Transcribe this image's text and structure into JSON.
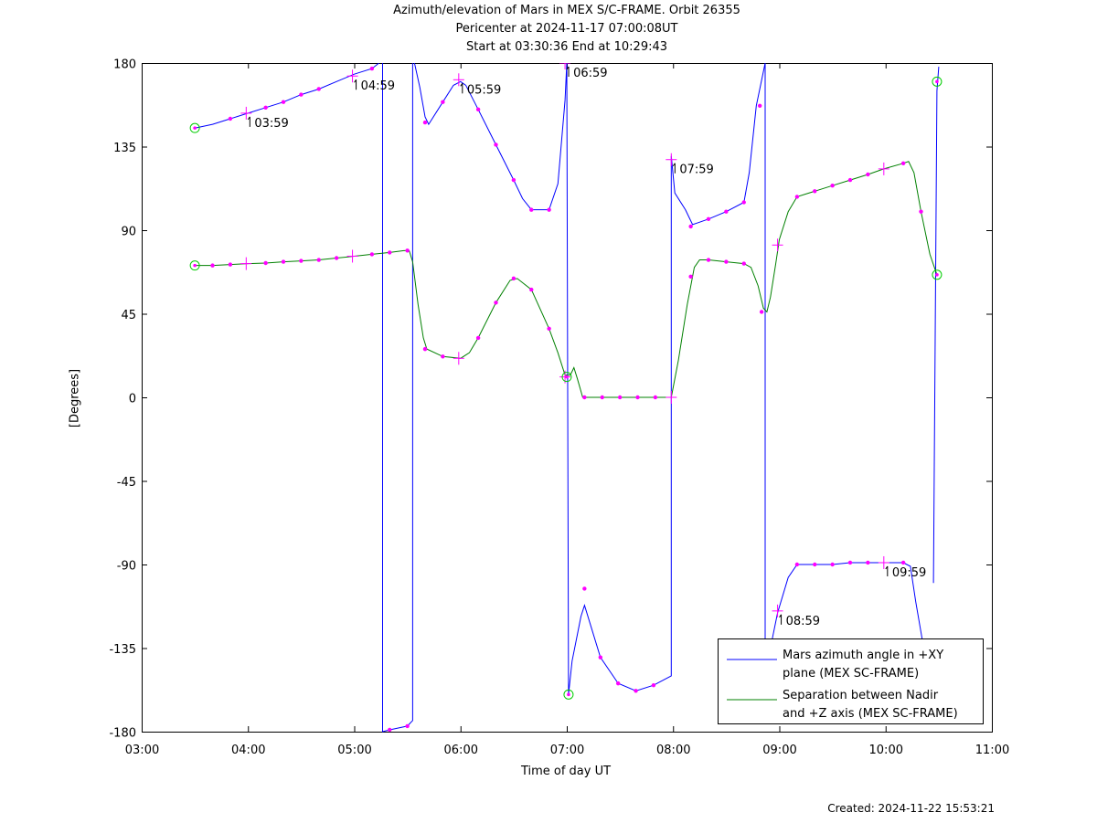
{
  "header": {
    "title": "Azimuth/elevation of Mars in MEX S/C-FRAME.  Orbit 26355",
    "pericenter": "Pericenter at 2024-11-17 07:00:08UT",
    "start_end": "Start at 03:30:36 End at 10:29:43"
  },
  "footer": {
    "created": "Created: 2024-11-22 15:53:21"
  },
  "colors": {
    "azimuth": "#0000ff",
    "separation": "#008000",
    "marker": "#ff00ff",
    "endpoint": "#00cc00"
  },
  "chart_data": {
    "type": "line",
    "xlabel": "Time of day UT",
    "ylabel": "[Degrees]",
    "xlim": [
      "03:00",
      "11:00"
    ],
    "ylim": [
      -180,
      180
    ],
    "xticks": [
      "03:00",
      "04:00",
      "05:00",
      "06:00",
      "07:00",
      "08:00",
      "09:00",
      "10:00",
      "11:00"
    ],
    "yticks": [
      "180",
      "135",
      "90",
      "45",
      "0",
      "-45",
      "-90",
      "-135",
      "-180"
    ],
    "grid": false,
    "legend_position": "bottom-right",
    "series": [
      {
        "name": "Mars azimuth angle in +XY plane (MEX SC-FRAME)",
        "legend_lines": [
          "Mars azimuth angle in +XY",
          "plane (MEX SC-FRAME)"
        ],
        "points": [
          [
            "03:30",
            145
          ],
          [
            "03:40",
            147
          ],
          [
            "03:50",
            150
          ],
          [
            "04:00",
            153
          ],
          [
            "04:10",
            156
          ],
          [
            "04:20",
            159
          ],
          [
            "04:30",
            163
          ],
          [
            "04:40",
            166
          ],
          [
            "04:50",
            170
          ],
          [
            "05:00",
            174
          ],
          [
            "05:10",
            177
          ],
          [
            "05:14",
            180
          ],
          null,
          [
            "05:16",
            180
          ],
          [
            "05:16",
            -180
          ],
          [
            "05:20",
            -179
          ],
          [
            "05:30",
            -177
          ],
          [
            "05:33",
            -174
          ],
          [
            "05:33",
            180
          ],
          null,
          [
            "05:34",
            180
          ],
          [
            "05:37",
            167
          ],
          [
            "05:40",
            151
          ],
          [
            "05:42",
            147
          ],
          [
            "05:50",
            159
          ],
          [
            "05:56",
            168
          ],
          [
            "06:00",
            170
          ],
          [
            "06:03",
            168
          ],
          [
            "06:10",
            155
          ],
          [
            "06:20",
            136
          ],
          [
            "06:30",
            117
          ],
          [
            "06:35",
            107
          ],
          [
            "06:40",
            101
          ],
          [
            "06:50",
            101
          ],
          [
            "06:55",
            115
          ],
          [
            "06:59",
            160
          ],
          [
            "07:00",
            180
          ],
          null,
          [
            "07:00",
            180
          ],
          [
            "07:01",
            -160
          ],
          [
            "07:03",
            -142
          ],
          [
            "07:08",
            -118
          ],
          [
            "07:10",
            -112
          ],
          [
            "07:19",
            -140
          ],
          [
            "07:29",
            -154
          ],
          [
            "07:39",
            -158
          ],
          [
            "07:49",
            -155
          ],
          [
            "07:59",
            -150
          ],
          [
            "07:59",
            130
          ],
          [
            "08:01",
            110
          ],
          [
            "08:07",
            101
          ],
          [
            "08:11",
            93
          ],
          [
            "08:20",
            96
          ],
          [
            "08:30",
            100
          ],
          [
            "08:40",
            105
          ],
          [
            "08:43",
            121
          ],
          [
            "08:47",
            157
          ],
          [
            "08:52",
            180
          ],
          null,
          [
            "08:52",
            180
          ],
          [
            "08:52",
            -150
          ],
          null,
          [
            "08:56",
            -130
          ],
          [
            "08:59",
            -116
          ],
          [
            "09:05",
            -97
          ],
          [
            "09:10",
            -90
          ],
          [
            "09:20",
            -90
          ],
          [
            "09:30",
            -90
          ],
          [
            "09:40",
            -89
          ],
          [
            "09:50",
            -89
          ],
          [
            "09:59",
            -89
          ],
          [
            "10:10",
            -89
          ],
          [
            "10:14",
            -91
          ],
          [
            "10:17",
            -110
          ],
          [
            "10:21",
            -132
          ],
          [
            "10:22",
            -130
          ],
          null,
          [
            "10:27",
            -100
          ],
          [
            "10:29",
            165
          ],
          [
            "10:30",
            178
          ]
        ],
        "markers": [
          [
            "03:50",
            150
          ],
          [
            "04:10",
            156
          ],
          [
            "04:20",
            159
          ],
          [
            "04:30",
            163
          ],
          [
            "04:40",
            166
          ],
          [
            "05:10",
            177
          ],
          [
            "05:20",
            -179
          ],
          [
            "05:30",
            -177
          ],
          [
            "05:40",
            148
          ],
          [
            "05:50",
            159
          ],
          [
            "06:10",
            155
          ],
          [
            "06:20",
            136
          ],
          [
            "06:30",
            117
          ],
          [
            "06:40",
            101
          ],
          [
            "06:50",
            101
          ],
          [
            "07:10",
            -103
          ],
          [
            "07:19",
            -140
          ],
          [
            "07:29",
            -154
          ],
          [
            "07:39",
            -158
          ],
          [
            "07:49",
            -155
          ],
          [
            "08:10",
            92
          ],
          [
            "08:20",
            96
          ],
          [
            "08:30",
            100
          ],
          [
            "08:40",
            105
          ],
          [
            "08:49",
            157
          ],
          [
            "09:10",
            -90
          ],
          [
            "09:20",
            -90
          ],
          [
            "09:30",
            -90
          ],
          [
            "09:40",
            -89
          ],
          [
            "09:50",
            -89
          ],
          [
            "10:10",
            -89
          ]
        ],
        "hour_markers": [
          {
            "t": "03:59",
            "y": 153,
            "label": "03:59"
          },
          {
            "t": "04:59",
            "y": 173,
            "label": "04:59"
          },
          {
            "t": "05:59",
            "y": 171,
            "label": "05:59"
          },
          {
            "t": "06:59",
            "y": 180,
            "label": "06:59"
          },
          {
            "t": "07:59",
            "y": 128,
            "label": "07:59"
          },
          {
            "t": "08:59",
            "y": -115,
            "label": "08:59"
          },
          {
            "t": "09:59",
            "y": -89,
            "label": "09:59"
          }
        ],
        "endpoints": [
          [
            "03:30",
            145
          ],
          [
            "07:01",
            -160
          ],
          [
            "10:29",
            170
          ]
        ]
      },
      {
        "name": "Separation between Nadir and +Z axis (MEX SC-FRAME)",
        "legend_lines": [
          "Separation between Nadir",
          "and +Z axis (MEX SC-FRAME)"
        ],
        "points": [
          [
            "03:30",
            71
          ],
          [
            "03:40",
            71
          ],
          [
            "03:50",
            71.5
          ],
          [
            "04:00",
            72
          ],
          [
            "04:10",
            72.3
          ],
          [
            "04:20",
            73
          ],
          [
            "04:30",
            73.5
          ],
          [
            "04:40",
            74
          ],
          [
            "04:50",
            75
          ],
          [
            "05:00",
            76
          ],
          [
            "05:10",
            77
          ],
          [
            "05:20",
            78
          ],
          [
            "05:28",
            79
          ],
          [
            "05:31",
            79
          ],
          [
            "05:33",
            73
          ],
          [
            "05:36",
            50
          ],
          [
            "05:39",
            32
          ],
          [
            "05:41",
            26
          ],
          [
            "05:50",
            22
          ],
          [
            "06:00",
            21
          ],
          [
            "06:05",
            24
          ],
          [
            "06:10",
            32
          ],
          [
            "06:20",
            51
          ],
          [
            "06:28",
            63
          ],
          [
            "06:32",
            64
          ],
          [
            "06:40",
            58
          ],
          [
            "06:50",
            37
          ],
          [
            "06:55",
            24
          ],
          [
            "06:59",
            12
          ],
          [
            "07:02",
            12
          ],
          [
            "07:04",
            16
          ],
          [
            "07:06",
            10
          ],
          [
            "07:09",
            0
          ],
          [
            "07:20",
            0
          ],
          [
            "07:30",
            0
          ],
          [
            "07:40",
            0
          ],
          [
            "07:50",
            0
          ],
          [
            "07:59",
            0
          ],
          [
            "08:03",
            20
          ],
          [
            "08:08",
            50
          ],
          [
            "08:12",
            70
          ],
          [
            "08:15",
            74
          ],
          [
            "08:20",
            74
          ],
          [
            "08:30",
            73
          ],
          [
            "08:40",
            72
          ],
          [
            "08:44",
            70
          ],
          [
            "08:48",
            60
          ],
          [
            "08:51",
            48
          ],
          [
            "08:53",
            46
          ],
          [
            "08:55",
            54
          ],
          [
            "08:58",
            72
          ],
          [
            "09:00",
            85
          ],
          [
            "09:05",
            100
          ],
          [
            "09:10",
            108
          ],
          [
            "09:20",
            111
          ],
          [
            "09:30",
            114
          ],
          [
            "09:40",
            117
          ],
          [
            "09:50",
            120
          ],
          [
            "09:59",
            123
          ],
          [
            "10:10",
            126
          ],
          [
            "10:13",
            127
          ],
          [
            "10:16",
            121
          ],
          [
            "10:20",
            100
          ],
          [
            "10:25",
            77
          ],
          [
            "10:29",
            66
          ]
        ],
        "markers": [
          [
            "03:40",
            71
          ],
          [
            "03:50",
            71.5
          ],
          [
            "04:10",
            72.3
          ],
          [
            "04:20",
            73
          ],
          [
            "04:30",
            73.5
          ],
          [
            "04:40",
            74
          ],
          [
            "04:50",
            75
          ],
          [
            "05:10",
            77
          ],
          [
            "05:20",
            78
          ],
          [
            "05:30",
            79
          ],
          [
            "05:40",
            26
          ],
          [
            "05:50",
            22
          ],
          [
            "06:10",
            32
          ],
          [
            "06:20",
            51
          ],
          [
            "06:30",
            64
          ],
          [
            "06:40",
            58
          ],
          [
            "06:50",
            37
          ],
          [
            "07:10",
            0
          ],
          [
            "07:20",
            0
          ],
          [
            "07:30",
            0
          ],
          [
            "07:40",
            0
          ],
          [
            "07:50",
            0
          ],
          [
            "08:10",
            65
          ],
          [
            "08:20",
            74
          ],
          [
            "08:30",
            73
          ],
          [
            "08:40",
            72
          ],
          [
            "08:50",
            46
          ],
          [
            "09:10",
            108
          ],
          [
            "09:20",
            111
          ],
          [
            "09:30",
            114
          ],
          [
            "09:40",
            117
          ],
          [
            "09:50",
            120
          ],
          [
            "10:10",
            126
          ],
          [
            "10:20",
            100
          ]
        ],
        "hour_markers": [
          {
            "t": "03:59",
            "y": 72
          },
          {
            "t": "04:59",
            "y": 76
          },
          {
            "t": "05:59",
            "y": 21
          },
          {
            "t": "06:59",
            "y": 11
          },
          {
            "t": "07:59",
            "y": 0
          },
          {
            "t": "08:59",
            "y": 82
          },
          {
            "t": "09:59",
            "y": 123
          }
        ],
        "endpoints": [
          [
            "03:30",
            71
          ],
          [
            "07:00",
            11
          ],
          [
            "10:29",
            66
          ]
        ]
      }
    ]
  }
}
